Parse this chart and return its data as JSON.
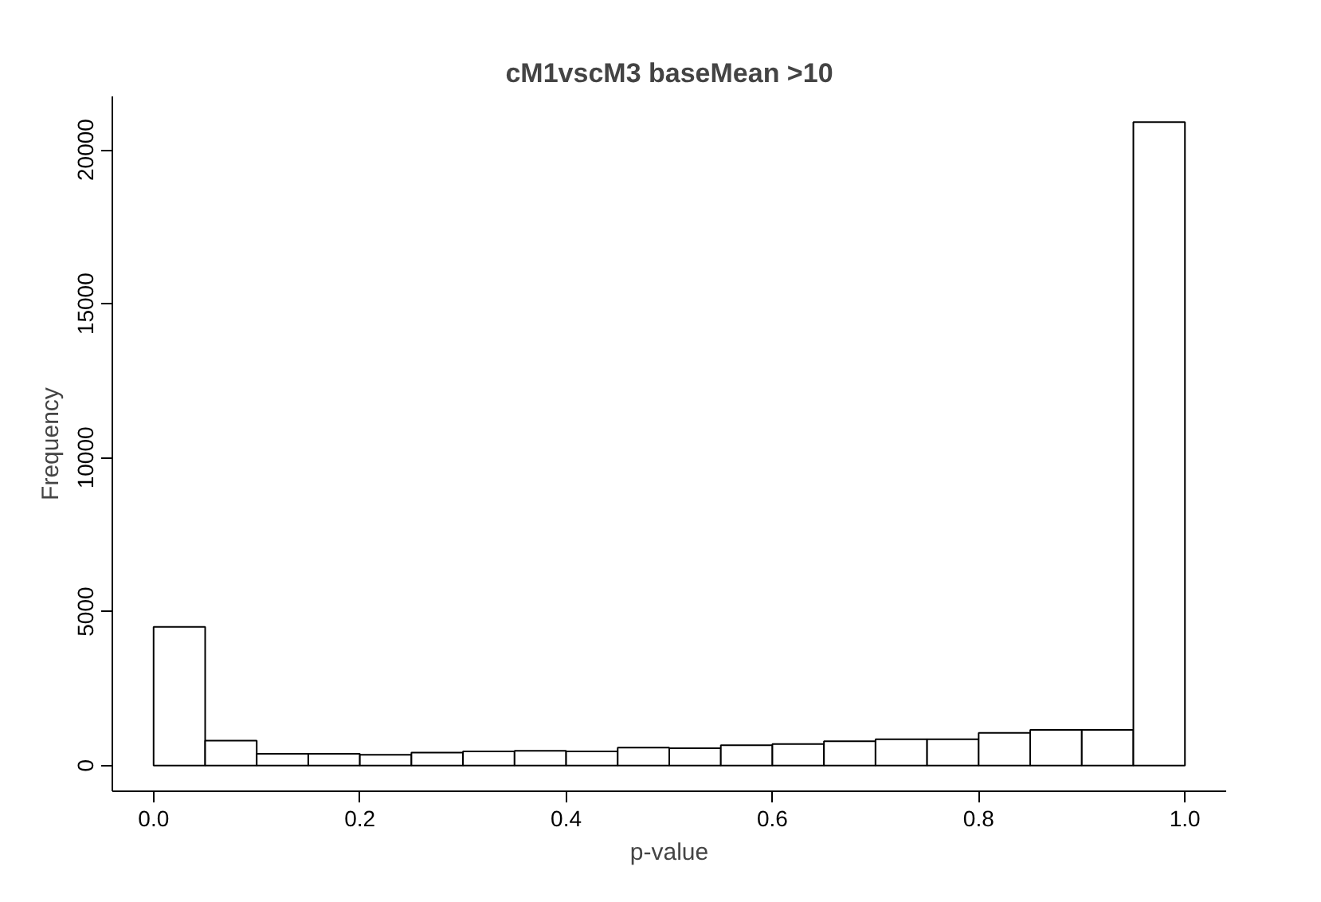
{
  "chart_data": {
    "type": "histogram",
    "title": "cM1vscM3 baseMean >10",
    "xlabel": "p-value",
    "ylabel": "Frequency",
    "bins": [
      0.0,
      0.05,
      0.1,
      0.15,
      0.2,
      0.25,
      0.3,
      0.35,
      0.4,
      0.45,
      0.5,
      0.55,
      0.6,
      0.65,
      0.7,
      0.75,
      0.8,
      0.85,
      0.9,
      0.95,
      1.0
    ],
    "values": [
      4500,
      810,
      380,
      380,
      350,
      420,
      460,
      480,
      460,
      580,
      560,
      660,
      700,
      790,
      850,
      850,
      1060,
      1160,
      1160,
      20900
    ],
    "color": "#ffffff",
    "xlim": [
      -0.04,
      1.04
    ],
    "xticks": [
      {
        "value": 0.0,
        "label": "0.0"
      },
      {
        "value": 0.2,
        "label": "0.2"
      },
      {
        "value": 0.4,
        "label": "0.4"
      },
      {
        "value": 0.6,
        "label": "0.6"
      },
      {
        "value": 0.8,
        "label": "0.8"
      },
      {
        "value": 1.0,
        "label": "1.0"
      }
    ],
    "ylim": [
      -836,
      21736
    ],
    "yticks": [
      0,
      5000,
      10000,
      15000,
      20000
    ],
    "grid": false
  }
}
